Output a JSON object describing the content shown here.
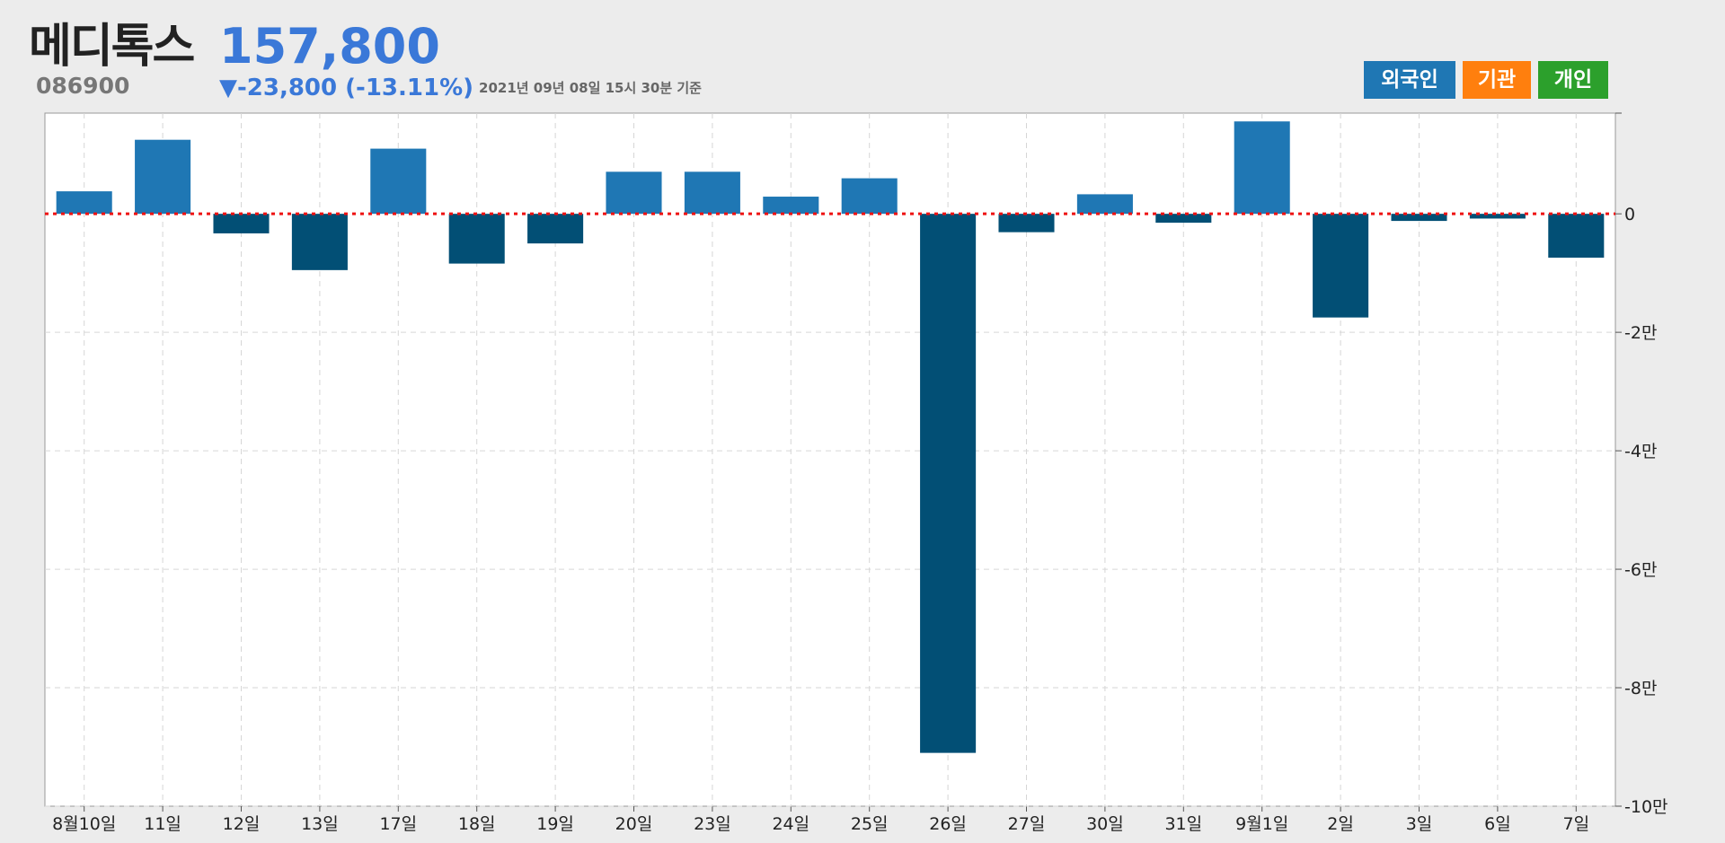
{
  "stock": {
    "name": "메디톡스",
    "code": "086900",
    "price": "157,800",
    "change": "▼-23,800 (-13.11%)",
    "timestamp": "2021년 09년 08일 15시 30분 기준"
  },
  "buttons": {
    "foreign": "외국인",
    "institution": "기관",
    "individual": "개인"
  },
  "colors": {
    "positive_bar": "#1f77b4",
    "negative_bar": "#024f75",
    "zero_line": "#ee1111",
    "price": "#3a78d8",
    "foreign": "#1f77b4",
    "institution": "#ff7f0e",
    "individual": "#2ca02c"
  },
  "chart_data": {
    "type": "bar",
    "categories": [
      "8월10일",
      "11일",
      "12일",
      "13일",
      "17일",
      "18일",
      "19일",
      "20일",
      "23일",
      "24일",
      "25일",
      "26일",
      "27일",
      "30일",
      "31일",
      "9월1일",
      "2일",
      "3일",
      "6일",
      "7일"
    ],
    "values": [
      3800,
      12500,
      -3300,
      -9500,
      11000,
      -8400,
      -5000,
      7100,
      7100,
      2900,
      6000,
      -91000,
      -3100,
      3300,
      -1500,
      15600,
      -17500,
      -1200,
      -800,
      -7400
    ],
    "ylim": [
      -100000,
      17000
    ],
    "yticks": [
      0,
      -20000,
      -40000,
      -60000,
      -80000,
      -100000
    ],
    "ytick_labels": [
      "0",
      "-2만",
      "-4만",
      "-6만",
      "-8만",
      "-10만"
    ],
    "y_axis_position": "right",
    "grid": true,
    "zero_line": "dotted-red"
  }
}
